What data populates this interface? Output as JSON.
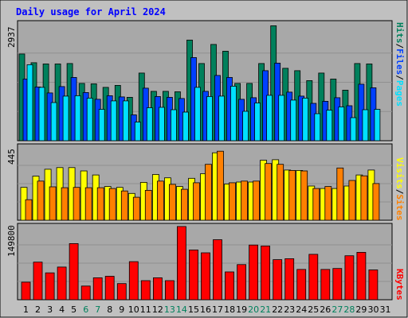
{
  "title": "Daily usage for April 2024",
  "colors": {
    "frame_bg": "#c0c0c0",
    "plot_bg": "#a8a8a8",
    "title": "#0000ff",
    "hits": "#00805c",
    "files": "#0040ff",
    "pages": "#00e0ff",
    "visits": "#ffff00",
    "sites": "#ff8000",
    "kbytes": "#ff0000",
    "weekend_day": "#00805c",
    "weekday": "#000000"
  },
  "legend": {
    "pages": "Pages",
    "files": "Files",
    "hits": "Hits",
    "sites": "Sites",
    "visits": "Visits",
    "kbytes": "KBytes",
    "sep": "/"
  },
  "chart_data": {
    "type": "bar",
    "title": "Daily usage for April 2024",
    "days": [
      "1",
      "2",
      "3",
      "4",
      "5",
      "6",
      "7",
      "8",
      "9",
      "10",
      "11",
      "12",
      "13",
      "14",
      "15",
      "16",
      "17",
      "18",
      "19",
      "20",
      "21",
      "22",
      "23",
      "24",
      "25",
      "26",
      "27",
      "28",
      "29",
      "30",
      "31"
    ],
    "weekend_days": [
      "6",
      "7",
      "13",
      "14",
      "20",
      "21",
      "27",
      "28"
    ],
    "panels": [
      {
        "ymax_label": "2937",
        "ymax": 2937,
        "series": [
          {
            "name": "Hits",
            "values": [
              2180,
              1960,
              1930,
              1930,
              1940,
              1440,
              1430,
              1340,
              1390,
              1090,
              1700,
              1240,
              1240,
              1230,
              2530,
              1940,
              2420,
              2250,
              1440,
              1440,
              1940,
              2890,
              1820,
              1760,
              1510,
              1700,
              1550,
              1270,
              1940,
              1930,
              null
            ]
          },
          {
            "name": "Files",
            "values": [
              1550,
              1350,
              1200,
              1360,
              1590,
              1210,
              1040,
              1130,
              1100,
              650,
              1320,
              1110,
              1090,
              1060,
              2090,
              1240,
              1640,
              1590,
              1040,
              1080,
              1760,
              1950,
              1220,
              1120,
              940,
              990,
              1080,
              880,
              1420,
              1330,
              null
            ]
          },
          {
            "name": "Pages",
            "values": [
              1910,
              1340,
              960,
              1120,
              1130,
              1070,
              790,
              1000,
              1000,
              470,
              830,
              840,
              780,
              720,
              1340,
              1110,
              1120,
              1370,
              740,
              950,
              1140,
              1140,
              1020,
              1070,
              680,
              770,
              850,
              580,
              780,
              790,
              null
            ]
          }
        ]
      },
      {
        "ymax_label": "445",
        "ymax": 445,
        "series": [
          {
            "name": "Visits",
            "values": [
              200,
              268,
              310,
              320,
              320,
              300,
              275,
              205,
              200,
              163,
              230,
              278,
              258,
              205,
              255,
              283,
              410,
              220,
              232,
              232,
              365,
              368,
              305,
              303,
              208,
              193,
              193,
              208,
              275,
              305,
              null
            ]
          },
          {
            "name": "Sites",
            "values": [
              125,
              238,
              203,
              198,
              200,
              198,
              198,
              193,
              178,
              140,
              182,
              238,
              218,
              188,
              228,
              340,
              420,
              228,
              238,
              238,
              345,
              340,
              303,
              300,
              193,
              205,
              318,
              242,
              270,
              223,
              null
            ]
          }
        ]
      },
      {
        "ymax_label": "149800",
        "ymax": 149800,
        "series": [
          {
            "name": "KBytes",
            "values": [
              36000,
              77000,
              55000,
              67000,
              115000,
              28000,
              45000,
              48000,
              33000,
              78000,
              39000,
              45000,
              39000,
              150000,
              102000,
              96000,
              123000,
              57000,
              72000,
              112000,
              110000,
              82000,
              84000,
              62000,
              93000,
              62000,
              64000,
              90000,
              97000,
              61000,
              null
            ]
          }
        ]
      }
    ]
  }
}
